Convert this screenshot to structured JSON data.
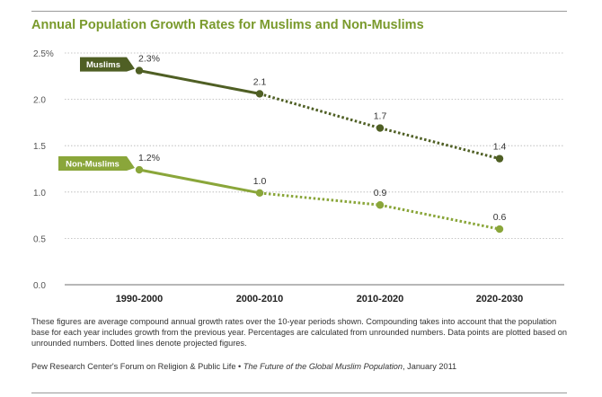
{
  "title": "Annual Population Growth Rates for Muslims and Non-Muslims",
  "note": "These figures are average compound annual growth rates over the 10-year periods shown. Compounding takes into account that the population base for each year includes growth from the previous year. Percentages are calculated from unrounded numbers. Data points are plotted based on unrounded numbers. Dotted lines denote projected figures.",
  "source": {
    "org": "Pew Research Center's Forum on Religion & Public Life",
    "separator": " • ",
    "publication": "The Future of the Global Muslim Population",
    "date": ", January 2011"
  },
  "chart_data": {
    "type": "line",
    "title": "Annual Population Growth Rates for Muslims and Non-Muslims",
    "xlabel": "",
    "ylabel": "",
    "categories": [
      "1990-2000",
      "2000-2010",
      "2010-2020",
      "2020-2030"
    ],
    "yticks": [
      "2.5%",
      "2.0",
      "1.5",
      "1.0",
      "0.5",
      "0.0"
    ],
    "yticks_values": [
      2.5,
      2.0,
      1.5,
      1.0,
      0.5,
      0.0
    ],
    "ylim": [
      0,
      2.5
    ],
    "grid": true,
    "legend": "series name tags at left of each line",
    "projected_from_index": 1,
    "series": [
      {
        "name": "Muslims",
        "values": [
          2.31,
          2.06,
          1.69,
          1.36
        ],
        "labels": [
          "2.3%",
          "2.1",
          "1.7",
          "1.4"
        ],
        "color": "#4f5f24"
      },
      {
        "name": "Non-Muslims",
        "values": [
          1.24,
          0.99,
          0.86,
          0.6
        ],
        "labels": [
          "1.2%",
          "1.0",
          "0.9",
          "0.6"
        ],
        "color": "#8aa63a"
      }
    ]
  }
}
